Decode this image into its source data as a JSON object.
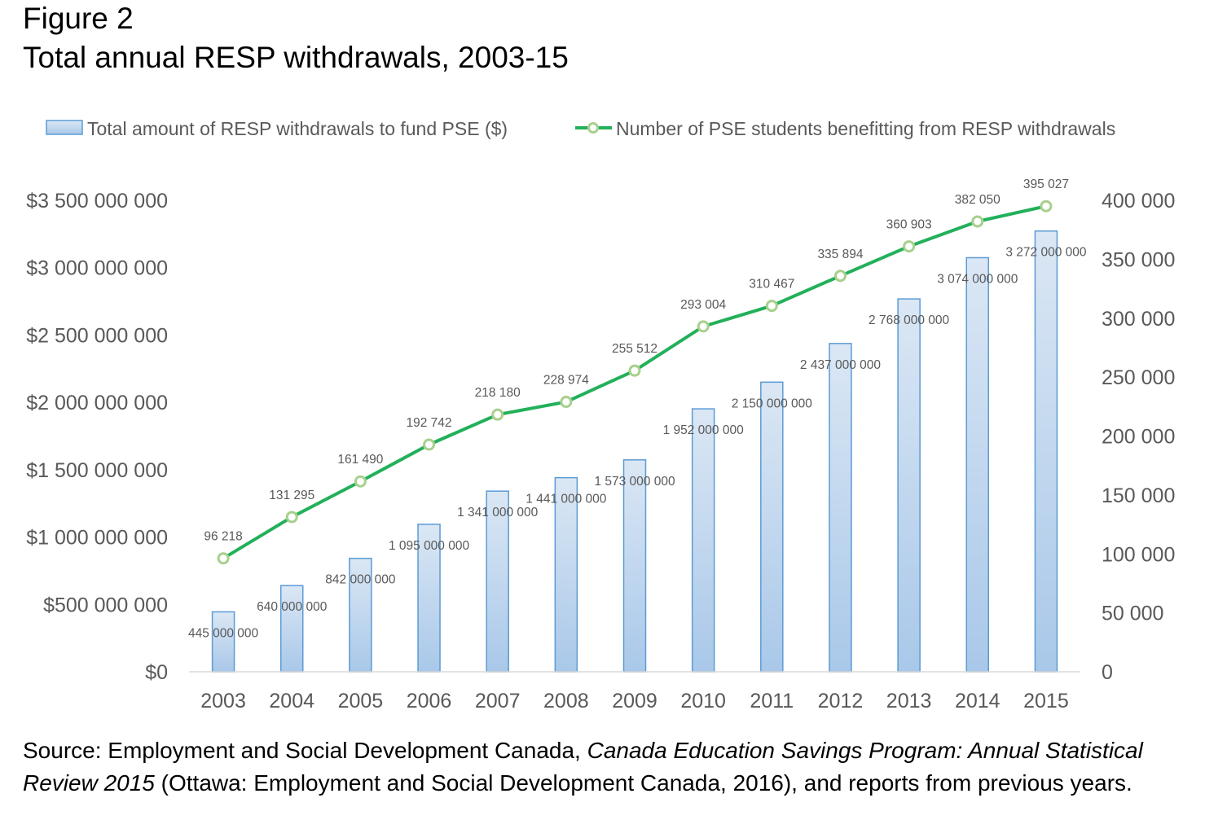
{
  "figure_label": "Figure 2",
  "figure_title": "Total annual RESP withdrawals, 2003-15",
  "source": {
    "prefix": "Source: Employment and Social Development Canada, ",
    "italic_part": "Canada Education Savings Program: Annual Statistical Review 2015",
    "suffix": " (Ottawa: Employment and Social Development Canada, 2016), and reports from previous years."
  },
  "colors": {
    "bar_fill_top": "#dbe7f4",
    "bar_fill_bottom": "#a9c8e9",
    "bar_stroke": "#5b9bd5",
    "line": "#22b05a",
    "marker_fill": "#ffffff",
    "marker_stroke": "#a8d08d",
    "axis_text": "#595959",
    "label_text": "#595959",
    "axis_line": "#d9d9d9"
  },
  "chart_data": {
    "type": "bar",
    "categories": [
      "2003",
      "2004",
      "2005",
      "2006",
      "2007",
      "2008",
      "2009",
      "2010",
      "2011",
      "2012",
      "2013",
      "2014",
      "2015"
    ],
    "series": [
      {
        "name": "Total amount of RESP withdrawals to fund PSE ($)",
        "type": "bar",
        "axis": "left",
        "values": [
          445000000,
          640000000,
          842000000,
          1095000000,
          1341000000,
          1441000000,
          1573000000,
          1952000000,
          2150000000,
          2437000000,
          2768000000,
          3074000000,
          3272000000
        ],
        "labels": [
          "445 000 000",
          "640 000 000",
          "842 000 000",
          "1 095 000 000",
          "1 341 000 000",
          "1 441 000 000",
          "1 573 000 000",
          "1 952 000 000",
          "2 150 000 000",
          "2 437 000 000",
          "2 768 000 000",
          "3 074 000 000",
          "3 272 000 000"
        ]
      },
      {
        "name": "Number of PSE students benefitting from RESP withdrawals",
        "type": "line",
        "axis": "right",
        "values": [
          96218,
          131295,
          161490,
          192742,
          218180,
          228974,
          255512,
          293004,
          310467,
          335894,
          360903,
          382050,
          395027
        ],
        "labels": [
          "96 218",
          "131 295",
          "161 490",
          "192 742",
          "218 180",
          "228 974",
          "255 512",
          "293 004",
          "310 467",
          "335 894",
          "360 903",
          "382 050",
          "395 027"
        ]
      }
    ],
    "y_left": {
      "ylim": [
        0,
        3500000000
      ],
      "ticks": [
        0,
        500000000,
        1000000000,
        1500000000,
        2000000000,
        2500000000,
        3000000000,
        3500000000
      ],
      "tick_labels": [
        "$0",
        "$500 000 000",
        "$1 000 000 000",
        "$1 500 000 000",
        "$2 000 000 000",
        "$2 500 000 000",
        "$3 000 000 000",
        "$3 500 000 000"
      ]
    },
    "y_right": {
      "ylim": [
        0,
        400000
      ],
      "ticks": [
        0,
        50000,
        100000,
        150000,
        200000,
        250000,
        300000,
        350000,
        400000
      ],
      "tick_labels": [
        "0",
        "50 000",
        "100 000",
        "150 000",
        "200 000",
        "250 000",
        "300 000",
        "350 000",
        "400 000"
      ]
    },
    "xlabel": "",
    "ylabel": "",
    "grid": false,
    "legend_position": "top"
  }
}
